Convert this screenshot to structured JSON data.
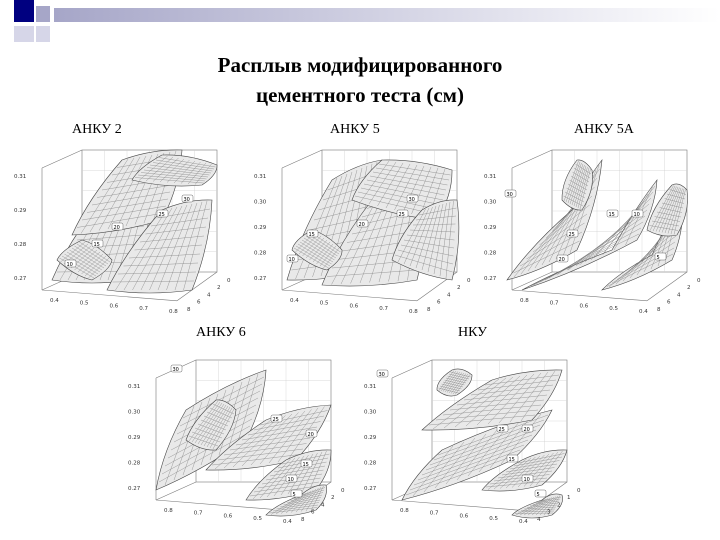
{
  "slide": {
    "title_line1": "Расплыв модифицированного",
    "title_line2": "цементного теста (см)",
    "decoration_colors": [
      "#000080",
      "#a6a6c8",
      "#d6d6e8"
    ]
  },
  "panels": [
    {
      "id": "anku2",
      "label": "АНКУ 2",
      "z_ticks": [
        "0.31",
        "0.29",
        "0.28",
        "0.27"
      ],
      "x_ticks": [
        "0.4",
        "0.5",
        "0.6",
        "0.7",
        "0.8"
      ],
      "y_ticks": [
        "0",
        "2",
        "4",
        "6",
        "8"
      ],
      "contour_labels": [
        "30",
        "25",
        "20",
        "15",
        "10"
      ]
    },
    {
      "id": "anku5",
      "label": "АНКУ 5",
      "z_ticks": [
        "0.31",
        "0.30",
        "0.29",
        "0.28",
        "0.27"
      ],
      "x_ticks": [
        "0.4",
        "0.5",
        "0.6",
        "0.7",
        "0.8"
      ],
      "y_ticks": [
        "0",
        "2",
        "4",
        "6",
        "8"
      ],
      "contour_labels": [
        "30",
        "25",
        "20",
        "15",
        "10"
      ]
    },
    {
      "id": "anku5a",
      "label": "АНКУ 5А",
      "z_ticks": [
        "0.31",
        "0.30",
        "0.29",
        "0.28",
        "0.27"
      ],
      "x_ticks": [
        "0.8",
        "0.7",
        "0.6",
        "0.5",
        "0.4"
      ],
      "y_ticks": [
        "0",
        "2",
        "4",
        "6",
        "8"
      ],
      "contour_labels": [
        "30",
        "25",
        "20",
        "15",
        "10",
        "5"
      ]
    },
    {
      "id": "anku6",
      "label": "АНКУ 6",
      "z_ticks": [
        "0.31",
        "0.30",
        "0.29",
        "0.28",
        "0.27"
      ],
      "x_ticks": [
        "0.8",
        "0.7",
        "0.6",
        "0.5",
        "0.4"
      ],
      "y_ticks": [
        "0",
        "2",
        "4",
        "6",
        "8"
      ],
      "contour_labels": [
        "30",
        "25",
        "20",
        "15",
        "10",
        "5"
      ]
    },
    {
      "id": "nku",
      "label": "НКУ",
      "z_ticks": [
        "0.31",
        "0.30",
        "0.29",
        "0.28",
        "0.27"
      ],
      "x_ticks": [
        "0.8",
        "0.7",
        "0.6",
        "0.5",
        "0.4"
      ],
      "y_ticks": [
        "0",
        "1",
        "2",
        "3",
        "4"
      ],
      "contour_labels": [
        "30",
        "25",
        "20",
        "15",
        "10",
        "5"
      ]
    }
  ]
}
